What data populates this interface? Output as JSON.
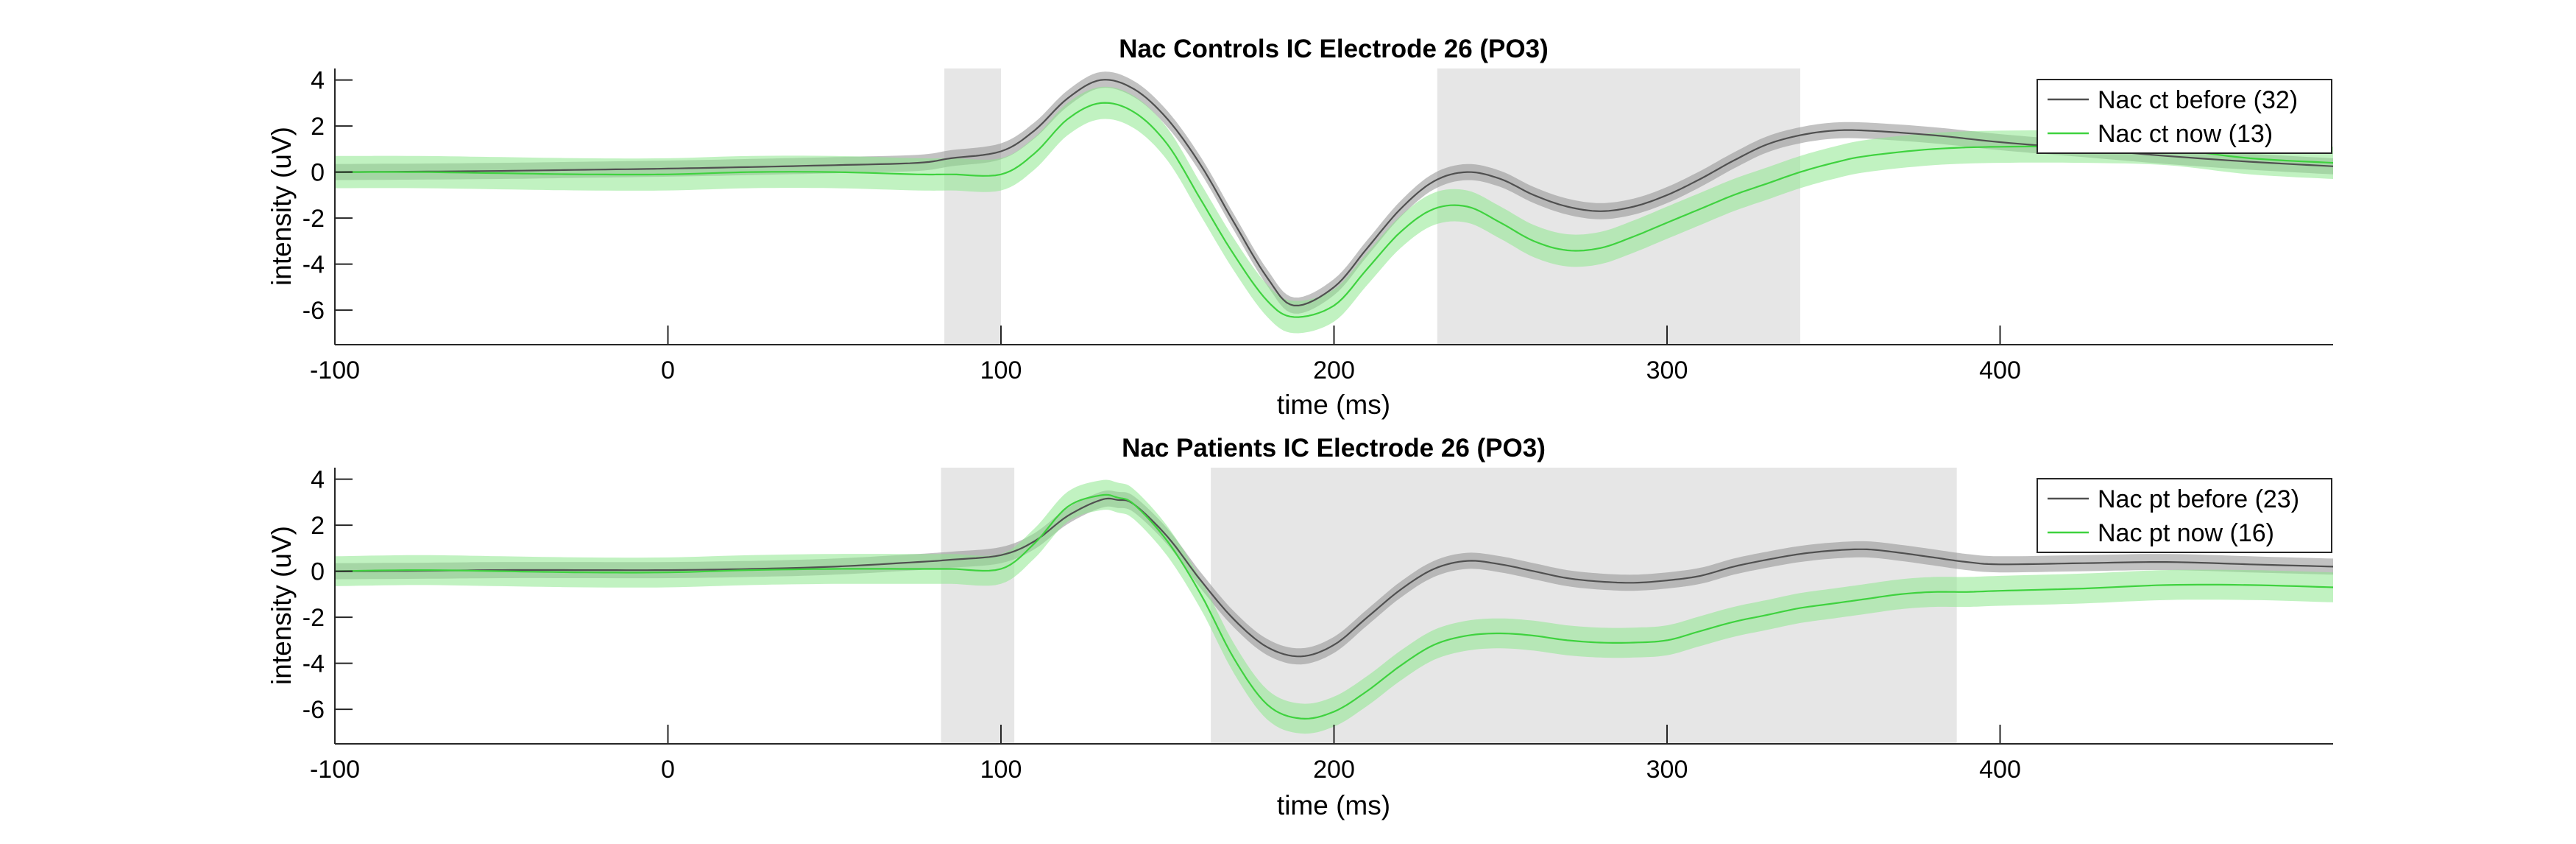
{
  "colors": {
    "before_line": "#505050",
    "before_band": "#8f8f8f",
    "now_line": "#3fd23f",
    "now_band": "#8ee88e",
    "highlight": "#e6e6e6",
    "axis": "#262626"
  },
  "chart_data": [
    {
      "type": "line",
      "title": "Nac Controls IC Electrode 26 (PO3)",
      "xlabel": "time (ms)",
      "ylabel": "intensity (uV)",
      "xlim": [
        -100,
        500
      ],
      "ylim": [
        -7.5,
        4.5
      ],
      "xticks": [
        -100,
        0,
        100,
        200,
        300,
        400
      ],
      "yticks": [
        -6,
        -4,
        -2,
        0,
        2,
        4
      ],
      "xtick_labels": [
        "-100",
        "0",
        "100",
        "200",
        "300",
        "400"
      ],
      "ytick_labels": [
        "-6",
        "-4",
        "-2",
        "0",
        "2",
        "4"
      ],
      "shaded_intervals": [
        [
          83,
          100
        ],
        [
          231,
          340
        ]
      ],
      "legend_position": "top-right",
      "series": [
        {
          "name": "Nac ct before (32)",
          "color_key": "before",
          "band_halfwidth": 0.35,
          "x": [
            -100,
            -75,
            -50,
            -25,
            0,
            25,
            50,
            75,
            85,
            100,
            110,
            120,
            130,
            140,
            150,
            160,
            170,
            180,
            188,
            200,
            210,
            220,
            230,
            240,
            250,
            260,
            270,
            280,
            290,
            300,
            310,
            320,
            330,
            340,
            350,
            360,
            380,
            400,
            425,
            450,
            475,
            500
          ],
          "y": [
            0,
            0.02,
            0.05,
            0.1,
            0.15,
            0.22,
            0.3,
            0.4,
            0.6,
            0.9,
            1.8,
            3.2,
            4.0,
            3.6,
            2.3,
            0.3,
            -2.2,
            -4.6,
            -5.8,
            -5.0,
            -3.3,
            -1.6,
            -0.4,
            0.0,
            -0.3,
            -1.0,
            -1.5,
            -1.7,
            -1.5,
            -1.0,
            -0.3,
            0.5,
            1.2,
            1.6,
            1.8,
            1.8,
            1.6,
            1.3,
            1.0,
            0.7,
            0.45,
            0.25
          ]
        },
        {
          "name": "Nac ct now (13)",
          "color_key": "now",
          "band_halfwidth": 0.7,
          "x": [
            -100,
            -75,
            -50,
            -25,
            0,
            25,
            50,
            75,
            85,
            100,
            110,
            120,
            130,
            140,
            150,
            160,
            170,
            180,
            188,
            200,
            210,
            220,
            230,
            240,
            250,
            260,
            270,
            280,
            290,
            300,
            310,
            320,
            330,
            340,
            350,
            360,
            380,
            400,
            425,
            450,
            475,
            500
          ],
          "y": [
            0,
            0,
            -0.05,
            -0.1,
            -0.1,
            0.0,
            0.0,
            -0.1,
            -0.1,
            -0.1,
            0.8,
            2.3,
            3.0,
            2.6,
            1.2,
            -1.2,
            -3.6,
            -5.6,
            -6.3,
            -5.8,
            -4.2,
            -2.6,
            -1.6,
            -1.5,
            -2.2,
            -3.0,
            -3.4,
            -3.3,
            -2.8,
            -2.2,
            -1.6,
            -1.0,
            -0.5,
            0.0,
            0.4,
            0.7,
            1.0,
            1.1,
            1.1,
            1.0,
            0.6,
            0.4
          ]
        }
      ]
    },
    {
      "type": "line",
      "title": "Nac Patients IC Electrode 26 (PO3)",
      "xlabel": "time (ms)",
      "ylabel": "intensity (uV)",
      "xlim": [
        -100,
        500
      ],
      "ylim": [
        -7.5,
        4.5
      ],
      "xticks": [
        -100,
        0,
        100,
        200,
        300,
        400
      ],
      "yticks": [
        -6,
        -4,
        -2,
        0,
        2,
        4
      ],
      "xtick_labels": [
        "-100",
        "0",
        "100",
        "200",
        "300",
        "400"
      ],
      "ytick_labels": [
        "-6",
        "-4",
        "-2",
        "0",
        "2",
        "4"
      ],
      "shaded_intervals": [
        [
          82,
          104
        ],
        [
          163,
          387
        ]
      ],
      "legend_position": "top-right",
      "series": [
        {
          "name": "Nac pt before (23)",
          "color_key": "before",
          "band_halfwidth": 0.35,
          "x": [
            -100,
            -75,
            -50,
            -25,
            0,
            25,
            50,
            75,
            85,
            100,
            110,
            120,
            130,
            135,
            140,
            150,
            160,
            170,
            180,
            190,
            200,
            210,
            220,
            230,
            240,
            250,
            260,
            270,
            280,
            290,
            300,
            310,
            320,
            330,
            340,
            350,
            360,
            370,
            380,
            390,
            400,
            425,
            450,
            475,
            500
          ],
          "y": [
            0,
            0.02,
            0.05,
            0.05,
            0.05,
            0.1,
            0.2,
            0.4,
            0.5,
            0.7,
            1.3,
            2.4,
            3.1,
            3.1,
            2.9,
            1.5,
            -0.4,
            -2.1,
            -3.3,
            -3.7,
            -3.2,
            -2.0,
            -0.8,
            0.1,
            0.45,
            0.3,
            0.0,
            -0.3,
            -0.45,
            -0.5,
            -0.4,
            -0.2,
            0.2,
            0.5,
            0.75,
            0.9,
            0.95,
            0.8,
            0.6,
            0.4,
            0.3,
            0.35,
            0.4,
            0.3,
            0.2
          ]
        },
        {
          "name": "Nac pt now (16)",
          "color_key": "now",
          "band_halfwidth": 0.65,
          "x": [
            -100,
            -75,
            -50,
            -25,
            0,
            25,
            50,
            75,
            85,
            100,
            110,
            120,
            130,
            135,
            140,
            150,
            160,
            170,
            180,
            190,
            200,
            210,
            220,
            230,
            240,
            250,
            260,
            270,
            280,
            290,
            300,
            310,
            320,
            330,
            340,
            350,
            360,
            370,
            380,
            390,
            400,
            425,
            450,
            475,
            500
          ],
          "y": [
            0,
            0.05,
            0,
            -0.05,
            -0.05,
            0.05,
            0.1,
            0.1,
            0.1,
            0.1,
            1.2,
            2.8,
            3.3,
            3.2,
            2.9,
            1.3,
            -1.0,
            -3.8,
            -5.8,
            -6.4,
            -6.1,
            -5.2,
            -4.1,
            -3.2,
            -2.8,
            -2.7,
            -2.8,
            -3.0,
            -3.1,
            -3.1,
            -3.0,
            -2.6,
            -2.2,
            -1.9,
            -1.6,
            -1.4,
            -1.2,
            -1.0,
            -0.9,
            -0.9,
            -0.85,
            -0.75,
            -0.6,
            -0.6,
            -0.7
          ]
        }
      ]
    }
  ]
}
